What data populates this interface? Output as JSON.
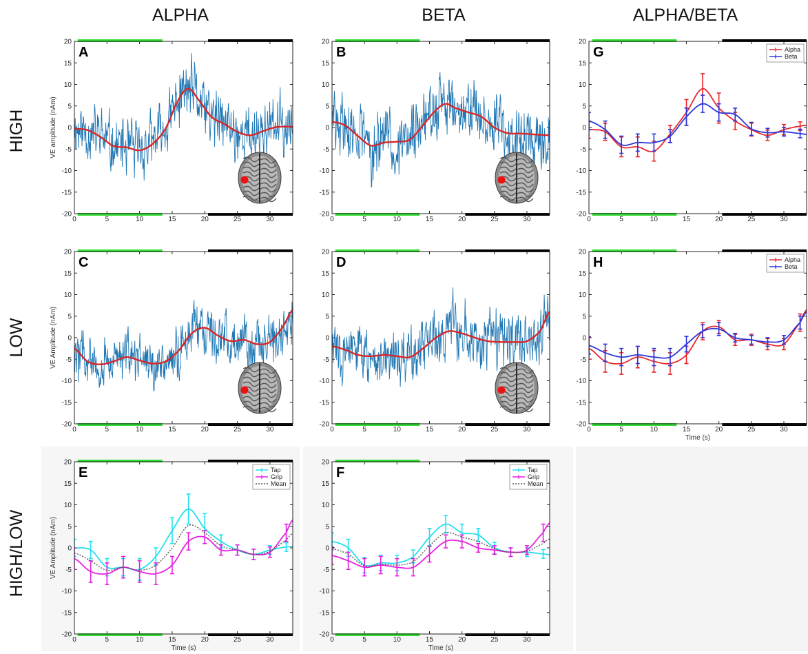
{
  "figure": {
    "column_titles": [
      "ALPHA",
      "BETA",
      "ALPHA/BETA"
    ],
    "row_titles": [
      "HIGH",
      "LOW",
      "HIGH/LOW"
    ]
  },
  "colors": {
    "raw_trace": "#1f77b4",
    "smooth_trace": "#d62728",
    "alpha": "#e8262b",
    "beta": "#2b35d8",
    "tap": "#21e0ee",
    "grip": "#e61fe0",
    "mean": "#555555",
    "green_bar": "#33dd33",
    "black_bar": "#000000",
    "brain_marker": "#ee1111"
  },
  "chart_data": [
    {
      "panel": "A",
      "type": "line",
      "xlabel": "",
      "ylabel": "VE amplitude (nAm)",
      "xlim": [
        0,
        33.5
      ],
      "ylim": [
        -20,
        20
      ],
      "xticks": [
        0,
        5,
        10,
        15,
        20,
        25,
        30
      ],
      "yticks": [
        -20,
        -15,
        -10,
        -5,
        0,
        5,
        10,
        15,
        20
      ],
      "x": [
        0,
        2,
        4,
        6,
        8,
        10,
        12,
        14,
        16,
        17.5,
        19,
        21,
        23,
        25,
        27,
        29,
        31,
        33.5
      ],
      "smooth": [
        -0.3,
        -0.6,
        -2.2,
        -4.3,
        -4.6,
        -5.3,
        -3.8,
        -0.2,
        6.5,
        9.0,
        6.5,
        2.5,
        0.8,
        -1.0,
        -1.8,
        -0.8,
        0.1,
        0.2
      ],
      "noise_amp": 5.5,
      "seed": 11,
      "brain_inset": true,
      "bars": {
        "green": [
          0.5,
          13.5
        ],
        "black": [
          20.5,
          33.5
        ]
      }
    },
    {
      "panel": "B",
      "type": "line",
      "xlabel": "",
      "ylabel": "",
      "xlim": [
        0,
        33.5
      ],
      "ylim": [
        -20,
        20
      ],
      "xticks": [
        0,
        5,
        10,
        15,
        20,
        25,
        30
      ],
      "yticks": [
        -20,
        -15,
        -10,
        -5,
        0,
        5,
        10,
        15,
        20
      ],
      "x": [
        0,
        2,
        4,
        6,
        8,
        10,
        12,
        14,
        16,
        17.5,
        19,
        21,
        23,
        25,
        27,
        29,
        31,
        33.5
      ],
      "smooth": [
        1.3,
        0.5,
        -2.0,
        -4.2,
        -3.5,
        -3.3,
        -2.8,
        0.5,
        4.0,
        5.5,
        4.5,
        3.5,
        2.5,
        0.0,
        -1.3,
        -1.4,
        -1.6,
        -1.8
      ],
      "noise_amp": 6.0,
      "seed": 29,
      "brain_inset": true,
      "bars": {
        "green": [
          0.5,
          13.5
        ],
        "black": [
          20.5,
          33.5
        ]
      }
    },
    {
      "panel": "G",
      "type": "line",
      "xlabel": "",
      "ylabel": "",
      "xlim": [
        0,
        33.5
      ],
      "ylim": [
        -20,
        20
      ],
      "xticks": [
        0,
        5,
        10,
        15,
        20,
        25,
        30
      ],
      "yticks": [
        -20,
        -15,
        -10,
        -5,
        0,
        5,
        10,
        15,
        20
      ],
      "x": [
        0,
        2.5,
        5,
        7.5,
        10,
        12.5,
        15,
        17.5,
        20,
        22.5,
        25,
        27.5,
        30,
        32.5,
        33.5
      ],
      "series": [
        {
          "name": "Alpha",
          "values": [
            -0.5,
            -1.0,
            -4.5,
            -4.5,
            -5.5,
            -1.5,
            3.5,
            9.0,
            4.5,
            1.5,
            -0.5,
            -1.8,
            -0.5,
            0.3,
            0.5
          ],
          "err": [
            2.0,
            2.0,
            2.3,
            2.3,
            2.3,
            2.0,
            3.0,
            3.5,
            3.5,
            2.0,
            1.5,
            1.2,
            1.2,
            1.0,
            1.0
          ]
        },
        {
          "name": "Beta",
          "values": [
            1.5,
            -0.5,
            -4.0,
            -3.5,
            -3.5,
            -2.0,
            2.5,
            5.5,
            3.5,
            3.0,
            -0.3,
            -1.2,
            -1.0,
            -1.4,
            -1.6
          ],
          "err": [
            2.0,
            2.0,
            2.0,
            2.0,
            2.0,
            1.5,
            2.0,
            2.0,
            2.0,
            1.5,
            1.5,
            1.0,
            1.0,
            1.0,
            1.0
          ]
        }
      ],
      "legend": [
        "Alpha",
        "Beta"
      ],
      "bars": {
        "green": [
          0.5,
          13.5
        ],
        "black": [
          20.5,
          33.5
        ]
      }
    },
    {
      "panel": "C",
      "type": "line",
      "xlabel": "",
      "ylabel": "VE Amplitude (nAm)",
      "xlim": [
        0,
        33.5
      ],
      "ylim": [
        -20,
        20
      ],
      "xticks": [
        0,
        5,
        10,
        15,
        20,
        25,
        30
      ],
      "yticks": [
        -20,
        -15,
        -10,
        -5,
        0,
        5,
        10,
        15,
        20
      ],
      "x": [
        0,
        2,
        4,
        6,
        8,
        10,
        12,
        14,
        16,
        18,
        20,
        22,
        24,
        26,
        28,
        30,
        32,
        33.5
      ],
      "smooth": [
        -2.5,
        -5.5,
        -6.2,
        -5.5,
        -4.5,
        -5.3,
        -6.0,
        -5.5,
        -3.0,
        1.0,
        2.3,
        0.5,
        -0.8,
        -0.5,
        -1.5,
        -1.0,
        2.5,
        6.5
      ],
      "noise_amp": 5.0,
      "seed": 47,
      "brain_inset": true,
      "bars": {
        "green": [
          0.5,
          13.5
        ],
        "black": [
          20.5,
          33.5
        ]
      }
    },
    {
      "panel": "D",
      "type": "line",
      "xlabel": "",
      "ylabel": "",
      "xlim": [
        0,
        33.5
      ],
      "ylim": [
        -20,
        20
      ],
      "xticks": [
        0,
        5,
        10,
        15,
        20,
        25,
        30
      ],
      "yticks": [
        -20,
        -15,
        -10,
        -5,
        0,
        5,
        10,
        15,
        20
      ],
      "x": [
        0,
        2,
        4,
        6,
        8,
        10,
        12,
        14,
        16,
        18,
        20,
        22,
        24,
        26,
        28,
        30,
        32,
        33.5
      ],
      "smooth": [
        -2.0,
        -2.8,
        -4.0,
        -4.3,
        -4.0,
        -4.3,
        -4.5,
        -2.5,
        0.0,
        1.5,
        1.0,
        0.0,
        -0.8,
        -1.0,
        -1.0,
        -0.8,
        1.5,
        6.0
      ],
      "noise_amp": 5.5,
      "seed": 83,
      "brain_inset": true,
      "bars": {
        "green": [
          0.5,
          13.5
        ],
        "black": [
          20.5,
          33.5
        ]
      }
    },
    {
      "panel": "H",
      "type": "line",
      "xlabel": "Time (s)",
      "ylabel": "",
      "xlim": [
        0,
        33.5
      ],
      "ylim": [
        -20,
        20
      ],
      "xticks": [
        0,
        5,
        10,
        15,
        20,
        25,
        30
      ],
      "yticks": [
        -20,
        -15,
        -10,
        -5,
        0,
        5,
        10,
        15,
        20
      ],
      "x": [
        0,
        2.5,
        5,
        7.5,
        10,
        12.5,
        15,
        17.5,
        20,
        22.5,
        25,
        27.5,
        30,
        32.5,
        33.5
      ],
      "series": [
        {
          "name": "Alpha",
          "values": [
            -2.5,
            -5.5,
            -6.0,
            -4.5,
            -5.5,
            -6.0,
            -4.0,
            1.5,
            2.5,
            -0.5,
            -0.5,
            -1.5,
            -1.5,
            3.5,
            6.5
          ],
          "err": [
            2.5,
            2.5,
            2.5,
            2.5,
            2.5,
            2.5,
            2.0,
            2.0,
            1.5,
            1.3,
            1.3,
            1.3,
            1.3,
            2.0,
            2.0
          ]
        },
        {
          "name": "Beta",
          "values": [
            -1.8,
            -3.5,
            -4.5,
            -4.0,
            -4.5,
            -4.5,
            -1.5,
            1.5,
            2.0,
            0.0,
            -0.5,
            -1.0,
            -0.5,
            3.5,
            6.0
          ],
          "err": [
            2.0,
            2.0,
            2.0,
            2.0,
            2.0,
            2.0,
            1.8,
            1.5,
            1.5,
            1.0,
            1.0,
            1.0,
            1.0,
            1.5,
            1.5
          ]
        }
      ],
      "legend": [
        "Alpha",
        "Beta"
      ],
      "bars": {
        "green": [
          0.5,
          13.5
        ],
        "black": [
          20.5,
          33.5
        ]
      }
    },
    {
      "panel": "E",
      "type": "line",
      "xlabel": "Time (s)",
      "ylabel": "VE Amplitude (nAm)",
      "xlim": [
        0,
        33.5
      ],
      "ylim": [
        -20,
        20
      ],
      "xticks": [
        0,
        5,
        10,
        15,
        20,
        25,
        30
      ],
      "yticks": [
        -20,
        -15,
        -10,
        -5,
        0,
        5,
        10,
        15,
        20
      ],
      "x": [
        0,
        2.5,
        5,
        7.5,
        10,
        12.5,
        15,
        17.5,
        20,
        22.5,
        25,
        27.5,
        30,
        32.5,
        33.5
      ],
      "series": [
        {
          "name": "Tap",
          "values": [
            0.0,
            -0.5,
            -4.5,
            -4.5,
            -5.0,
            -2.0,
            4.0,
            9.0,
            4.5,
            1.5,
            -0.5,
            -1.5,
            -0.5,
            0.2,
            0.3
          ],
          "err": [
            2.0,
            2.0,
            2.0,
            2.0,
            2.5,
            2.0,
            3.0,
            3.5,
            3.5,
            1.5,
            1.2,
            1.2,
            1.0,
            1.0,
            1.0
          ]
        },
        {
          "name": "Grip",
          "values": [
            -2.5,
            -5.5,
            -6.0,
            -4.5,
            -5.5,
            -6.0,
            -4.0,
            1.5,
            2.5,
            -0.5,
            -0.5,
            -1.5,
            -1.0,
            3.5,
            6.5
          ],
          "err": [
            2.5,
            2.5,
            2.5,
            2.5,
            2.5,
            2.5,
            2.0,
            2.0,
            1.5,
            1.2,
            1.2,
            1.2,
            1.2,
            2.0,
            2.0
          ]
        },
        {
          "name": "Mean",
          "values": [
            -1.2,
            -3.0,
            -5.2,
            -4.5,
            -5.2,
            -4.0,
            0.0,
            5.2,
            3.5,
            0.5,
            -0.5,
            -1.5,
            -0.8,
            1.8,
            3.4
          ]
        }
      ],
      "legend": [
        "Tap",
        "Grip",
        "Mean"
      ],
      "bars": {
        "green": [
          0.5,
          13.5
        ],
        "black": [
          20.5,
          33.5
        ]
      }
    },
    {
      "panel": "F",
      "type": "line",
      "xlabel": "Time (s)",
      "ylabel": "",
      "xlim": [
        0,
        33.5
      ],
      "ylim": [
        -20,
        20
      ],
      "xticks": [
        0,
        5,
        10,
        15,
        20,
        25,
        30
      ],
      "yticks": [
        -20,
        -15,
        -10,
        -5,
        0,
        5,
        10,
        15,
        20
      ],
      "x": [
        0,
        2.5,
        5,
        7.5,
        10,
        12.5,
        15,
        17.5,
        20,
        22.5,
        25,
        27.5,
        30,
        32.5,
        33.5
      ],
      "series": [
        {
          "name": "Tap",
          "values": [
            1.5,
            0.0,
            -4.0,
            -3.5,
            -3.5,
            -2.0,
            2.5,
            5.5,
            3.5,
            3.0,
            0.0,
            -1.0,
            -1.0,
            -1.4,
            -1.6
          ],
          "err": [
            2.0,
            2.0,
            1.8,
            1.8,
            1.8,
            1.5,
            2.0,
            2.0,
            2.0,
            1.5,
            1.3,
            1.0,
            1.0,
            1.0,
            1.0
          ]
        },
        {
          "name": "Grip",
          "values": [
            -1.8,
            -3.0,
            -4.5,
            -4.0,
            -4.5,
            -4.5,
            -1.5,
            1.5,
            1.5,
            0.0,
            -0.5,
            -1.0,
            -0.5,
            3.5,
            5.8
          ],
          "err": [
            2.0,
            2.0,
            2.0,
            2.0,
            2.0,
            2.0,
            1.8,
            1.5,
            1.5,
            1.0,
            1.0,
            1.0,
            1.0,
            2.0,
            2.0
          ]
        },
        {
          "name": "Mean",
          "values": [
            -0.2,
            -1.5,
            -4.2,
            -3.8,
            -4.0,
            -3.2,
            0.5,
            3.5,
            2.5,
            1.5,
            -0.2,
            -1.0,
            -0.8,
            1.0,
            2.1
          ]
        }
      ],
      "legend": [
        "Tap",
        "Grip",
        "Mean"
      ],
      "bars": {
        "green": [
          0.5,
          13.5
        ],
        "black": [
          20.5,
          33.5
        ]
      }
    }
  ]
}
